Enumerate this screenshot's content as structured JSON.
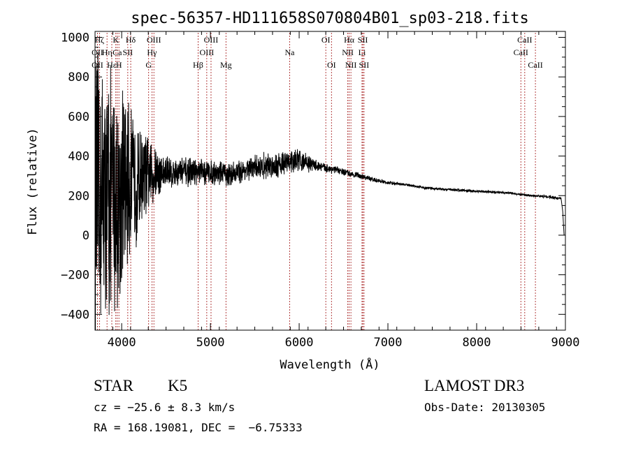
{
  "chart_data": {
    "type": "line",
    "title": "spec-56357-HD111658S070804B01_sp03-218.fits",
    "xlabel": "Wavelength (Å)",
    "ylabel": "Flux (relative)",
    "xlim": [
      3700,
      9000
    ],
    "ylim": [
      -480,
      1030
    ],
    "xticks": [
      4000,
      5000,
      6000,
      7000,
      8000,
      9000
    ],
    "yticks": [
      -400,
      -200,
      0,
      200,
      400,
      600,
      800,
      1000
    ],
    "ytick_labels": [
      "−400",
      "−200",
      "0",
      "200",
      "400",
      "600",
      "800",
      "1000"
    ],
    "grid": false,
    "series": [
      {
        "name": "flux",
        "color": "#000000",
        "envelope": {
          "wavelength": [
            3700,
            3800,
            3900,
            4000,
            4100,
            4200,
            4300,
            4400,
            4600,
            4800,
            5000,
            5200,
            5400,
            5600,
            5800,
            6000,
            6200,
            6400,
            6600,
            6800,
            7000,
            7200,
            7400,
            7600,
            7800,
            8000,
            8200,
            8400,
            8600,
            8800,
            8950
          ],
          "flux": [
            150,
            180,
            200,
            220,
            250,
            290,
            300,
            310,
            320,
            320,
            320,
            310,
            330,
            350,
            360,
            380,
            350,
            330,
            310,
            285,
            265,
            255,
            240,
            233,
            228,
            222,
            218,
            212,
            200,
            195,
            185
          ],
          "noise_amplitude": [
            850,
            800,
            700,
            600,
            480,
            320,
            230,
            140,
            90,
            80,
            75,
            70,
            70,
            75,
            75,
            65,
            35,
            22,
            18,
            14,
            10,
            8,
            8,
            8,
            8,
            7,
            7,
            7,
            7,
            8,
            10
          ]
        }
      }
    ],
    "spectral_lines": [
      {
        "label": "Hζ",
        "wavelength": 3750,
        "row": 0
      },
      {
        "label": "OII",
        "wavelength": 3727,
        "row": 1
      },
      {
        "label": "OII",
        "wavelength": 3727,
        "row": 2
      },
      {
        "label": "Hη",
        "wavelength": 3835,
        "row": 1
      },
      {
        "label": "Hε",
        "wavelength": 3889,
        "row": 2
      },
      {
        "label": "K",
        "wavelength": 3934,
        "row": 0
      },
      {
        "label": "Ca",
        "wavelength": 3950,
        "row": 1
      },
      {
        "label": "H",
        "wavelength": 3969,
        "row": 2
      },
      {
        "label": "Hδ",
        "wavelength": 4102,
        "row": 0
      },
      {
        "label": "SII",
        "wavelength": 4069,
        "row": 1
      },
      {
        "label": "OIII",
        "wavelength": 4363,
        "row": 0
      },
      {
        "label": "Hγ",
        "wavelength": 4341,
        "row": 1
      },
      {
        "label": "G",
        "wavelength": 4304,
        "row": 2
      },
      {
        "label": "Hβ",
        "wavelength": 4861,
        "row": 2
      },
      {
        "label": "OIII",
        "wavelength": 5007,
        "row": 0
      },
      {
        "label": "OIII",
        "wavelength": 4959,
        "row": 1
      },
      {
        "label": "Mg",
        "wavelength": 5175,
        "row": 2
      },
      {
        "label": "Na",
        "wavelength": 5893,
        "row": 1
      },
      {
        "label": "OI",
        "wavelength": 6300,
        "row": 0
      },
      {
        "label": "OI",
        "wavelength": 6364,
        "row": 2
      },
      {
        "label": "Hα",
        "wavelength": 6563,
        "row": 0
      },
      {
        "label": "NII",
        "wavelength": 6548,
        "row": 1
      },
      {
        "label": "NII",
        "wavelength": 6583,
        "row": 2
      },
      {
        "label": "SII",
        "wavelength": 6717,
        "row": 0
      },
      {
        "label": "Li",
        "wavelength": 6708,
        "row": 1
      },
      {
        "label": "SII",
        "wavelength": 6731,
        "row": 2
      },
      {
        "label": "CaII",
        "wavelength": 8542,
        "row": 0
      },
      {
        "label": "CaII",
        "wavelength": 8498,
        "row": 1
      },
      {
        "label": "CaII",
        "wavelength": 8662,
        "row": 2
      }
    ]
  },
  "info": {
    "object_class": "STAR",
    "subclass": "K5",
    "survey": "LAMOST DR3",
    "velocity": "cz = −25.6 ± 8.3 km/s",
    "obs_date": "Obs-Date: 20130305",
    "coords": "RA = 168.19081, DEC =  −6.75333"
  },
  "colors": {
    "line_marker": "#a01010",
    "trace": "#000000",
    "axes": "#000000"
  }
}
